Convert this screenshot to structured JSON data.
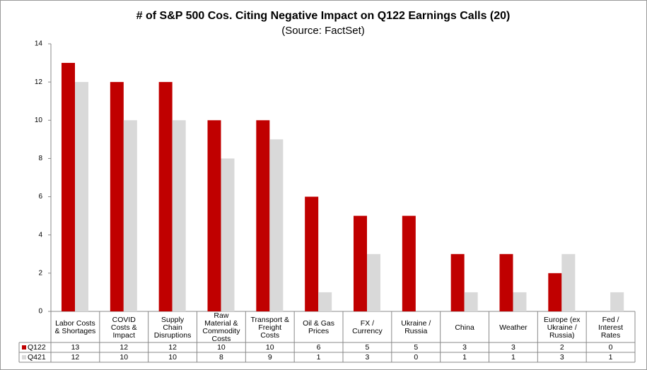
{
  "chart_data": {
    "type": "bar",
    "title": "# of S&P 500 Cos. Citing Negative Impact on Q122 Earnings Calls (20)",
    "subtitle": "(Source: FactSet)",
    "categories": [
      "Labor Costs\n& Shortages",
      "COVID\nCosts &\nImpact",
      "Supply\nChain\nDisruptions",
      "Raw\nMaterial &\nCommodity\nCosts",
      "Transport &\nFreight\nCosts",
      "Oil & Gas\nPrices",
      "FX /\nCurrency",
      "Ukraine /\nRussia",
      "China",
      "Weather",
      "Europe (ex\nUkraine /\nRussia)",
      "Fed /\nInterest\nRates"
    ],
    "series": [
      {
        "name": "Q122",
        "color": "#c00000",
        "values": [
          13,
          12,
          12,
          10,
          10,
          6,
          5,
          5,
          3,
          3,
          2,
          0
        ]
      },
      {
        "name": "Q421",
        "color": "#d9d9d9",
        "values": [
          12,
          10,
          10,
          8,
          9,
          1,
          3,
          0,
          1,
          1,
          3,
          1
        ]
      }
    ],
    "ylim": [
      0,
      14
    ],
    "yticks": [
      0,
      2,
      4,
      6,
      8,
      10,
      12,
      14
    ],
    "grid": false
  }
}
